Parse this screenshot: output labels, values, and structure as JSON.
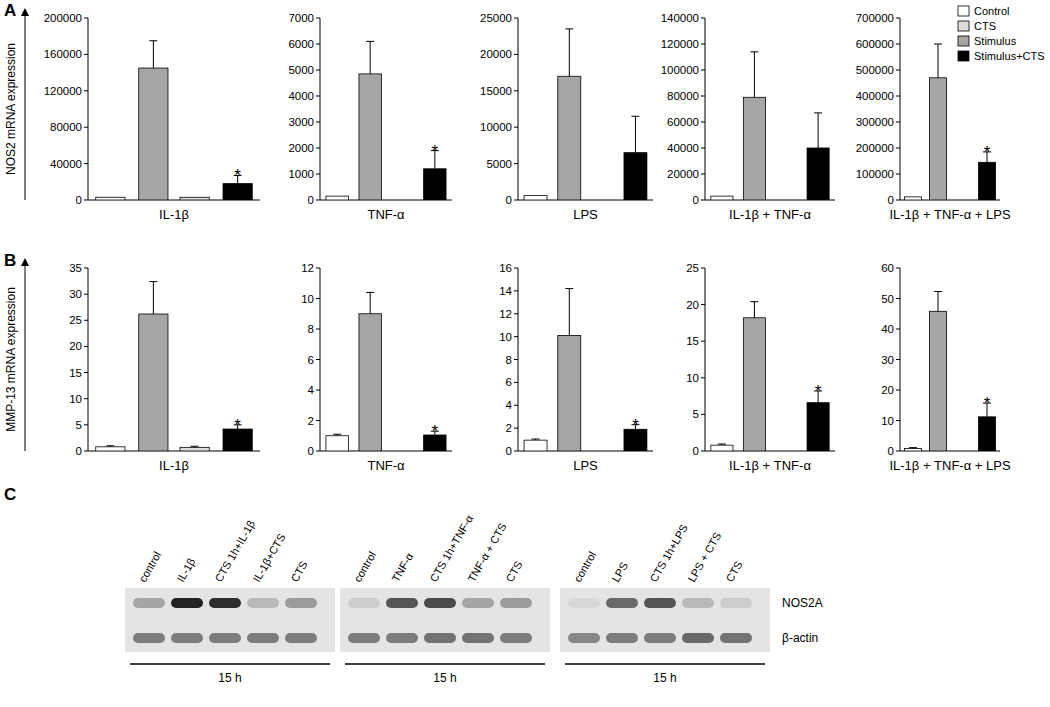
{
  "panel_labels": [
    "A",
    "B",
    "C"
  ],
  "legend_entries": [
    {
      "name": "Control",
      "color": "#ffffff"
    },
    {
      "name": "CTS",
      "color": "#dcdcdc"
    },
    {
      "name": "Stimulus",
      "color": "#a6a6a6"
    },
    {
      "name": "Stimulus+CTS",
      "color": "#000000"
    }
  ],
  "chart_data": [
    {
      "type": "bar",
      "ylabel": "NOS2 mRNA expression",
      "xlabel": "IL-1β",
      "categories": [
        null,
        null,
        null,
        null
      ],
      "values": [
        3000,
        145000,
        3000,
        18000
      ],
      "errors": [
        null,
        30000,
        null,
        9000
      ],
      "colors": [
        "#ffffff",
        "#a6a6a6",
        "#dcdcdc",
        "#000000"
      ],
      "significance": [
        null,
        null,
        null,
        "*"
      ],
      "ylim": [
        0,
        200000
      ],
      "yticks": [
        0,
        40000,
        80000,
        120000,
        160000,
        200000
      ]
    },
    {
      "type": "bar",
      "xlabel": "TNF-α",
      "categories": [
        null,
        null,
        null,
        null
      ],
      "values": [
        150,
        4850,
        null,
        1200
      ],
      "errors": [
        null,
        1250,
        null,
        700
      ],
      "colors": [
        "#ffffff",
        "#a6a6a6",
        "#dcdcdc",
        "#000000"
      ],
      "significance": [
        null,
        null,
        null,
        "*"
      ],
      "ylim": [
        0,
        7000
      ],
      "yticks": [
        0,
        1000,
        2000,
        3000,
        4000,
        5000,
        6000,
        7000
      ]
    },
    {
      "type": "bar",
      "xlabel": "LPS",
      "categories": [
        null,
        null,
        null,
        null
      ],
      "values": [
        600,
        17000,
        null,
        6500
      ],
      "errors": [
        null,
        6500,
        null,
        5000
      ],
      "colors": [
        "#ffffff",
        "#a6a6a6",
        "#dcdcdc",
        "#000000"
      ],
      "significance": [
        null,
        null,
        null,
        null
      ],
      "ylim": [
        0,
        25000
      ],
      "yticks": [
        0,
        5000,
        10000,
        15000,
        20000,
        25000
      ]
    },
    {
      "type": "bar",
      "xlabel": "IL-1β + TNF-α",
      "categories": [
        null,
        null,
        null,
        null
      ],
      "values": [
        3000,
        79000,
        null,
        40000
      ],
      "errors": [
        null,
        35000,
        null,
        27000
      ],
      "colors": [
        "#ffffff",
        "#a6a6a6",
        "#dcdcdc",
        "#000000"
      ],
      "significance": [
        null,
        null,
        null,
        null
      ],
      "ylim": [
        0,
        140000
      ],
      "yticks": [
        0,
        20000,
        40000,
        60000,
        80000,
        100000,
        120000,
        140000
      ]
    },
    {
      "type": "bar",
      "xlabel": "IL-1β + TNF-α + LPS",
      "categories": [
        null,
        null,
        null,
        null
      ],
      "values": [
        12000,
        470000,
        null,
        145000
      ],
      "errors": [
        null,
        130000,
        null,
        40000
      ],
      "colors": [
        "#ffffff",
        "#a6a6a6",
        "#dcdcdc",
        "#000000"
      ],
      "significance": [
        null,
        null,
        null,
        "*"
      ],
      "ylim": [
        0,
        700000
      ],
      "yticks": [
        0,
        100000,
        200000,
        300000,
        400000,
        500000,
        600000,
        700000
      ]
    },
    {
      "type": "bar",
      "ylabel": "MMP-13 mRNA expression",
      "xlabel": "IL-1β",
      "categories": [
        null,
        null,
        null,
        null
      ],
      "values": [
        0.8,
        26.2,
        0.7,
        4.2
      ],
      "errors": [
        0.2,
        6.2,
        0.2,
        0.8
      ],
      "colors": [
        "#ffffff",
        "#a6a6a6",
        "#dcdcdc",
        "#000000"
      ],
      "significance": [
        null,
        null,
        null,
        "*"
      ],
      "ylim": [
        0,
        35
      ],
      "yticks": [
        0,
        5,
        10,
        15,
        20,
        25,
        30,
        35
      ]
    },
    {
      "type": "bar",
      "xlabel": "TNF-α",
      "categories": [
        null,
        null,
        null,
        null
      ],
      "values": [
        1.0,
        9.0,
        null,
        1.05
      ],
      "errors": [
        0.1,
        1.4,
        null,
        0.25
      ],
      "colors": [
        "#ffffff",
        "#a6a6a6",
        "#dcdcdc",
        "#000000"
      ],
      "significance": [
        null,
        null,
        null,
        "*"
      ],
      "ylim": [
        0,
        12
      ],
      "yticks": [
        0,
        2,
        4,
        6,
        8,
        10,
        12
      ]
    },
    {
      "type": "bar",
      "xlabel": "LPS",
      "categories": [
        null,
        null,
        null,
        null
      ],
      "values": [
        0.95,
        10.1,
        null,
        1.9
      ],
      "errors": [
        0.1,
        4.1,
        null,
        0.4
      ],
      "colors": [
        "#ffffff",
        "#a6a6a6",
        "#dcdcdc",
        "#000000"
      ],
      "significance": [
        null,
        null,
        null,
        "*"
      ],
      "ylim": [
        0,
        16
      ],
      "yticks": [
        0,
        2,
        4,
        6,
        8,
        10,
        12,
        14,
        16
      ]
    },
    {
      "type": "bar",
      "xlabel": "IL-1β + TNF-α",
      "categories": [
        null,
        null,
        null,
        null
      ],
      "values": [
        0.8,
        18.2,
        null,
        6.6
      ],
      "errors": [
        0.15,
        2.2,
        null,
        1.6
      ],
      "colors": [
        "#ffffff",
        "#a6a6a6",
        "#dcdcdc",
        "#000000"
      ],
      "significance": [
        null,
        null,
        null,
        "*"
      ],
      "ylim": [
        0,
        25
      ],
      "yticks": [
        0,
        5,
        10,
        15,
        20,
        25
      ]
    },
    {
      "type": "bar",
      "xlabel": "IL-1β + TNF-α + LPS",
      "categories": [
        null,
        null,
        null,
        null
      ],
      "values": [
        0.8,
        45.8,
        null,
        11.2
      ],
      "errors": [
        0.3,
        6.5,
        null,
        4.5
      ],
      "colors": [
        "#ffffff",
        "#a6a6a6",
        "#dcdcdc",
        "#000000"
      ],
      "significance": [
        null,
        null,
        null,
        "*"
      ],
      "ylim": [
        0,
        60
      ],
      "yticks": [
        0,
        10,
        20,
        30,
        40,
        50,
        60
      ]
    }
  ],
  "blot": {
    "rows": [
      "NOS2A",
      "β-actin"
    ],
    "groups": [
      {
        "lanes": [
          "control",
          "IL-1β",
          "CTS 1h+IL-1β",
          "IL-1β+CTS",
          "CTS"
        ],
        "time": "15 h",
        "intensity": [
          [
            0.3,
            0.95,
            0.9,
            0.2,
            0.35
          ],
          [
            0.5,
            0.5,
            0.5,
            0.5,
            0.5
          ]
        ]
      },
      {
        "lanes": [
          "control",
          "TNF-α",
          "CTS 1h+TNF-α",
          "TNF-α + CTS",
          "CTS"
        ],
        "time": "15 h",
        "intensity": [
          [
            0.1,
            0.7,
            0.75,
            0.3,
            0.35
          ],
          [
            0.5,
            0.5,
            0.55,
            0.55,
            0.5
          ]
        ]
      },
      {
        "lanes": [
          "control",
          "LPS",
          "CTS 1h+LPS",
          "LPS + CTS",
          "CTS"
        ],
        "time": "15 h",
        "intensity": [
          [
            0.05,
            0.6,
            0.7,
            0.2,
            0.1
          ],
          [
            0.45,
            0.5,
            0.5,
            0.6,
            0.55
          ]
        ]
      }
    ]
  }
}
